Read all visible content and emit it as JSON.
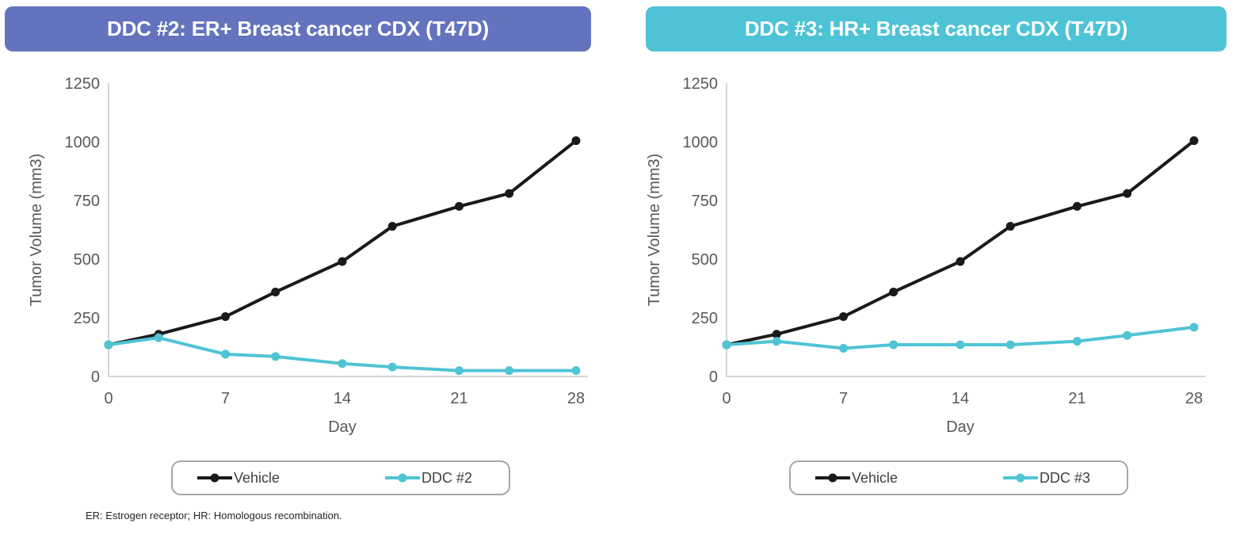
{
  "footnote": "ER: Estrogen receptor; HR: Homologous recombination.",
  "chart_data": [
    {
      "type": "line",
      "title": "DDC #2: ER+ Breast cancer CDX (T47D)",
      "banner_color": "#6373BD",
      "xlabel": "Day",
      "ylabel": "Tumor Volume (mm3)",
      "xlim": [
        0,
        28
      ],
      "ylim": [
        0,
        1250
      ],
      "x_ticks": [
        0,
        7,
        14,
        21,
        28
      ],
      "y_ticks": [
        0,
        250,
        500,
        750,
        1000,
        1250
      ],
      "grid": false,
      "legend_position": "bottom",
      "x": [
        0,
        3,
        7,
        10,
        14,
        17,
        21,
        24,
        28
      ],
      "series": [
        {
          "name": "Vehicle",
          "color": "#1a1a1a",
          "values": [
            135,
            180,
            255,
            360,
            490,
            640,
            725,
            780,
            1005
          ]
        },
        {
          "name": "DDC #2",
          "color": "#4fc4d5",
          "values": [
            135,
            165,
            95,
            85,
            55,
            40,
            25,
            25,
            25
          ]
        }
      ]
    },
    {
      "type": "line",
      "title": "DDC #3: HR+ Breast cancer CDX (T47D)",
      "banner_color": "#4EC3D6",
      "xlabel": "Day",
      "ylabel": "Tumor Volume (mm3)",
      "xlim": [
        0,
        28
      ],
      "ylim": [
        0,
        1250
      ],
      "x_ticks": [
        0,
        7,
        14,
        21,
        28
      ],
      "y_ticks": [
        0,
        250,
        500,
        750,
        1000,
        1250
      ],
      "grid": false,
      "legend_position": "bottom",
      "x": [
        0,
        3,
        7,
        10,
        14,
        17,
        21,
        24,
        28
      ],
      "series": [
        {
          "name": "Vehicle",
          "color": "#1a1a1a",
          "values": [
            135,
            180,
            255,
            360,
            490,
            640,
            725,
            780,
            1005
          ]
        },
        {
          "name": "DDC #3",
          "color": "#4fc4d5",
          "values": [
            135,
            150,
            120,
            135,
            135,
            135,
            150,
            175,
            210
          ]
        }
      ]
    }
  ],
  "axis_style": {
    "line_color": "#c9c9c9",
    "tick_color": "#595959"
  }
}
